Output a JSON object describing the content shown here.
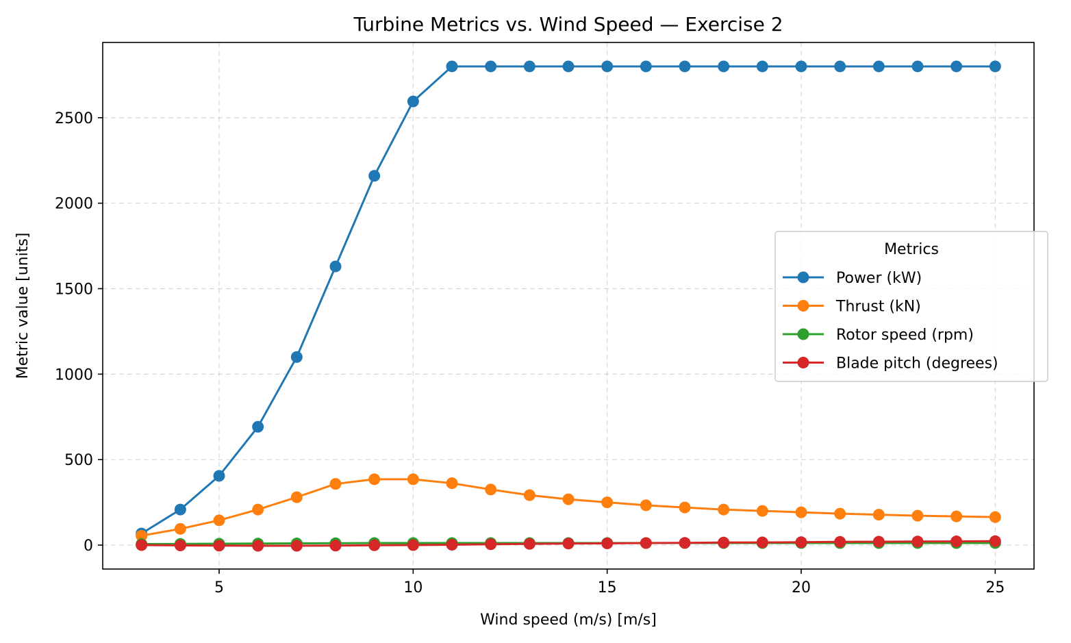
{
  "chart_data": {
    "type": "line",
    "title": "Turbine Metrics vs. Wind Speed — Exercise 2",
    "xlabel": "Wind speed (m/s) [m/s]",
    "ylabel": "Metric value [units]",
    "xlim": [
      2,
      26
    ],
    "ylim": [
      -140,
      2940
    ],
    "xticks": [
      5,
      10,
      15,
      20,
      25
    ],
    "yticks": [
      0,
      500,
      1000,
      1500,
      2000,
      2500
    ],
    "grid": true,
    "legend_title": "Metrics",
    "legend_position": "center-right",
    "x": [
      3,
      4,
      5,
      6,
      7,
      8,
      9,
      10,
      11,
      12,
      13,
      14,
      15,
      16,
      17,
      18,
      19,
      20,
      21,
      22,
      23,
      24,
      25
    ],
    "series": [
      {
        "name": "Power (kW)",
        "color": "#1f77b4",
        "values": [
          68,
          208,
          405,
          692,
          1100,
          1630,
          2160,
          2595,
          2800,
          2800,
          2800,
          2800,
          2800,
          2800,
          2800,
          2800,
          2800,
          2800,
          2800,
          2800,
          2800,
          2800,
          2800
        ]
      },
      {
        "name": "Thrust (kN)",
        "color": "#ff7f0e",
        "values": [
          55,
          95,
          145,
          208,
          280,
          358,
          385,
          385,
          362,
          325,
          292,
          268,
          250,
          233,
          220,
          208,
          200,
          192,
          184,
          178,
          172,
          168,
          164
        ]
      },
      {
        "name": "Rotor speed (rpm)",
        "color": "#2ca02c",
        "values": [
          6,
          7,
          8,
          9,
          10,
          11,
          12,
          12,
          12,
          12,
          12,
          12,
          12,
          12,
          12,
          12,
          12,
          12,
          12,
          12,
          12,
          12,
          12
        ]
      },
      {
        "name": "Blade pitch (degrees)",
        "color": "#d62728",
        "values": [
          0,
          -2,
          -3,
          -4,
          -4,
          -3,
          -1,
          0,
          2,
          5,
          7,
          9,
          10,
          12,
          13,
          15,
          16,
          17,
          19,
          20,
          21,
          22,
          23
        ]
      }
    ]
  }
}
